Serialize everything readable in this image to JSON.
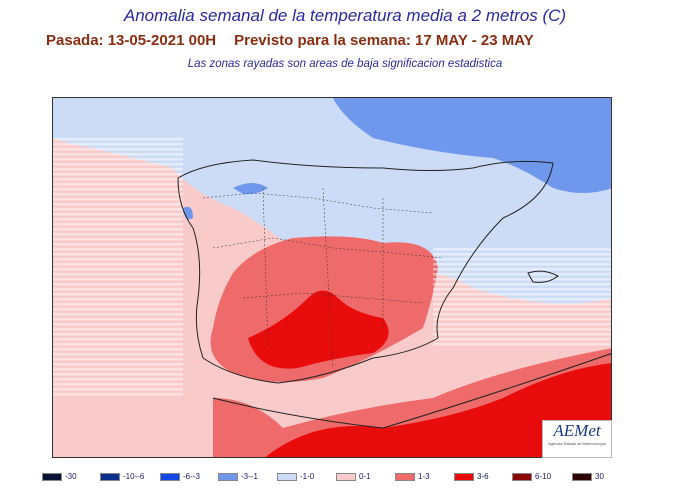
{
  "title": "Anomalia semanal de la temperatura media a 2 metros (C)",
  "subtitle_run": "Pasada: 13-05-2021 00H",
  "subtitle_forecast": "Previsto para la semana:  17 MAY - 23 MAY",
  "note": "Las zonas rayadas son areas de baja significacion estadistica",
  "logo": {
    "name": "AEMet",
    "caption": "Agencia Estatal de Meteorología"
  },
  "legend": [
    {
      "label": "-30",
      "color": "#0a1535"
    },
    {
      "label": "-10--6",
      "color": "#0a2e8a"
    },
    {
      "label": "-6--3",
      "color": "#1446e6"
    },
    {
      "label": "-3--1",
      "color": "#6f98ec"
    },
    {
      "label": "-1-0",
      "color": "#cddcf6"
    },
    {
      "label": "0-1",
      "color": "#f9caca"
    },
    {
      "label": "1-3",
      "color": "#ef6a6a"
    },
    {
      "label": "3-6",
      "color": "#e80c0c"
    },
    {
      "label": "6-10",
      "color": "#8a0808"
    },
    {
      "label": "30",
      "color": "#2e0505"
    }
  ]
}
